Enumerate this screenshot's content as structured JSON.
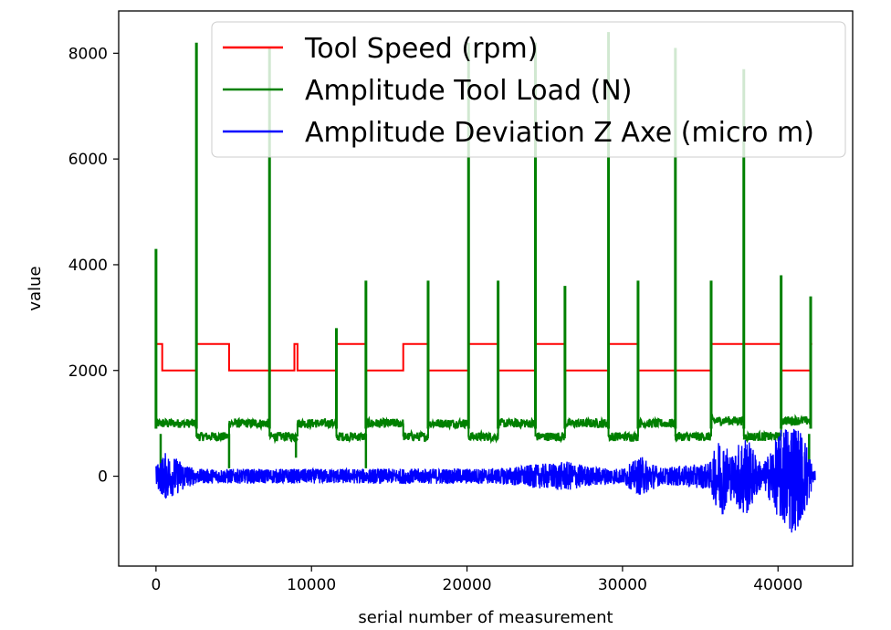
{
  "chart_data": {
    "type": "line",
    "title": "",
    "xlabel": "serial number of measurement",
    "ylabel": "value",
    "xlim": [
      -2400,
      44800
    ],
    "ylim": [
      -1700,
      8800
    ],
    "xticks": [
      0,
      10000,
      20000,
      30000,
      40000
    ],
    "xtick_labels": [
      "0",
      "10000",
      "20000",
      "30000",
      "40000"
    ],
    "yticks": [
      0,
      2000,
      4000,
      6000,
      8000
    ],
    "ytick_labels": [
      "0",
      "2000",
      "4000",
      "6000",
      "8000"
    ],
    "grid": false,
    "legend_position": "top-right",
    "series": [
      {
        "name": "Tool Speed (rpm)",
        "color": "#ff0000",
        "kind": "step",
        "steps": [
          {
            "x": 0,
            "y": 2500
          },
          {
            "x": 400,
            "y": 2000
          },
          {
            "x": 2600,
            "y": 2500
          },
          {
            "x": 4700,
            "y": 2000
          },
          {
            "x": 7300,
            "y": 2000
          },
          {
            "x": 8900,
            "y": 2500
          },
          {
            "x": 9100,
            "y": 2000
          },
          {
            "x": 11600,
            "y": 2500
          },
          {
            "x": 13500,
            "y": 2000
          },
          {
            "x": 15900,
            "y": 2500
          },
          {
            "x": 17500,
            "y": 2000
          },
          {
            "x": 20100,
            "y": 2500
          },
          {
            "x": 22000,
            "y": 2000
          },
          {
            "x": 24400,
            "y": 2500
          },
          {
            "x": 26300,
            "y": 2000
          },
          {
            "x": 29100,
            "y": 2500
          },
          {
            "x": 31000,
            "y": 2000
          },
          {
            "x": 33400,
            "y": 2000
          },
          {
            "x": 35700,
            "y": 2500
          },
          {
            "x": 40200,
            "y": 2000
          },
          {
            "x": 42100,
            "y": 2500
          }
        ],
        "x_end": 42200
      },
      {
        "name": "Amplitude Tool Load (N)",
        "color": "#008000",
        "kind": "segments_with_spikes",
        "segments": [
          {
            "x0": 0,
            "x1": 600,
            "y": 1000
          },
          {
            "x0": 600,
            "x1": 2600,
            "y": 1000
          },
          {
            "x0": 2600,
            "x1": 4700,
            "y": 750
          },
          {
            "x0": 4700,
            "x1": 7300,
            "y": 1000
          },
          {
            "x0": 7300,
            "x1": 9100,
            "y": 750
          },
          {
            "x0": 9100,
            "x1": 11600,
            "y": 1000
          },
          {
            "x0": 11600,
            "x1": 13500,
            "y": 750
          },
          {
            "x0": 13500,
            "x1": 15900,
            "y": 1000
          },
          {
            "x0": 15900,
            "x1": 17500,
            "y": 750
          },
          {
            "x0": 17500,
            "x1": 20100,
            "y": 1000
          },
          {
            "x0": 20100,
            "x1": 22000,
            "y": 750
          },
          {
            "x0": 22000,
            "x1": 24400,
            "y": 1000
          },
          {
            "x0": 24400,
            "x1": 26300,
            "y": 750
          },
          {
            "x0": 26300,
            "x1": 29100,
            "y": 1000
          },
          {
            "x0": 29100,
            "x1": 31000,
            "y": 750
          },
          {
            "x0": 31000,
            "x1": 33400,
            "y": 1000
          },
          {
            "x0": 33400,
            "x1": 35700,
            "y": 750
          },
          {
            "x0": 35700,
            "x1": 37800,
            "y": 1050
          },
          {
            "x0": 37800,
            "x1": 40200,
            "y": 750
          },
          {
            "x0": 40200,
            "x1": 42100,
            "y": 1050
          }
        ],
        "spikes": [
          {
            "x": 0,
            "y": 4300
          },
          {
            "x": 2600,
            "y": 8200
          },
          {
            "x": 7300,
            "y": 8100
          },
          {
            "x": 11600,
            "y": 2800
          },
          {
            "x": 13500,
            "y": 3700
          },
          {
            "x": 17500,
            "y": 3700
          },
          {
            "x": 20100,
            "y": 8200
          },
          {
            "x": 22000,
            "y": 3700
          },
          {
            "x": 24400,
            "y": 8200
          },
          {
            "x": 26300,
            "y": 3600
          },
          {
            "x": 29100,
            "y": 8400
          },
          {
            "x": 31000,
            "y": 3700
          },
          {
            "x": 33400,
            "y": 8100
          },
          {
            "x": 35700,
            "y": 3700
          },
          {
            "x": 37800,
            "y": 7700
          },
          {
            "x": 40200,
            "y": 3800
          },
          {
            "x": 42100,
            "y": 3400
          }
        ],
        "dips": [
          {
            "x": 300,
            "y": 100
          },
          {
            "x": 4700,
            "y": 150
          },
          {
            "x": 9000,
            "y": 350
          },
          {
            "x": 13500,
            "y": 150
          },
          {
            "x": 42000,
            "y": 150
          }
        ]
      },
      {
        "name": "Amplitude Deviation Z Axe (micro m)",
        "color": "#0000ff",
        "kind": "noise",
        "x_start": 0,
        "x_end": 42400,
        "baseline": 0,
        "amplitude_profile": [
          {
            "x": 0,
            "a": 200
          },
          {
            "x": 600,
            "a": 450
          },
          {
            "x": 1500,
            "a": 320
          },
          {
            "x": 2500,
            "a": 140
          },
          {
            "x": 10000,
            "a": 140
          },
          {
            "x": 22000,
            "a": 150
          },
          {
            "x": 24200,
            "a": 220
          },
          {
            "x": 26500,
            "a": 280
          },
          {
            "x": 28000,
            "a": 180
          },
          {
            "x": 30000,
            "a": 150
          },
          {
            "x": 31200,
            "a": 380
          },
          {
            "x": 32500,
            "a": 160
          },
          {
            "x": 35600,
            "a": 250
          },
          {
            "x": 36300,
            "a": 800
          },
          {
            "x": 37100,
            "a": 400
          },
          {
            "x": 37800,
            "a": 850
          },
          {
            "x": 39000,
            "a": 200
          },
          {
            "x": 40200,
            "a": 900
          },
          {
            "x": 40900,
            "a": 1150
          },
          {
            "x": 41800,
            "a": 700
          },
          {
            "x": 42300,
            "a": 100
          }
        ]
      }
    ]
  }
}
